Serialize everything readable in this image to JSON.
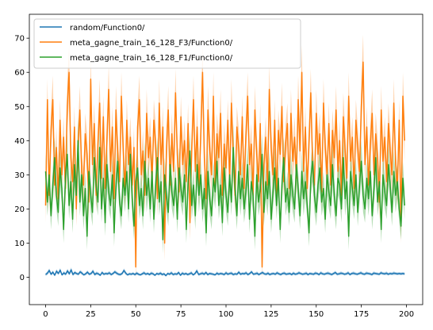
{
  "chart_data": {
    "type": "line",
    "title": "",
    "xlabel": "",
    "ylabel": "",
    "xlim": [
      -9,
      209
    ],
    "ylim": [
      -8,
      77
    ],
    "x_ticks": [
      0,
      25,
      50,
      75,
      100,
      125,
      150,
      175,
      200
    ],
    "y_ticks": [
      0,
      10,
      20,
      30,
      40,
      50,
      60,
      70
    ],
    "legend_position": "top-left",
    "grid": false,
    "series": [
      {
        "name": "random/Function0/",
        "color": "#1f77b4",
        "x_start": 0,
        "x_end": 199,
        "values": [
          0.8,
          1.2,
          2.0,
          0.9,
          1.5,
          0.6,
          1.8,
          1.1,
          2.1,
          0.7,
          1.3,
          0.9,
          1.9,
          1.0,
          2.2,
          0.8,
          1.4,
          1.1,
          0.9,
          1.6,
          1.2,
          0.7,
          1.0,
          1.5,
          0.9,
          1.1,
          1.8,
          0.8,
          1.2,
          1.0,
          0.6,
          1.4,
          0.9,
          1.1,
          1.0,
          1.3,
          0.8,
          1.1,
          1.6,
          1.2,
          0.9,
          0.8,
          1.1,
          2.0,
          1.2,
          0.7,
          1.0,
          0.9,
          1.1,
          0.8,
          1.2,
          0.9,
          0.7,
          1.0,
          1.3,
          0.9,
          1.1,
          0.8,
          1.2,
          1.0,
          0.6,
          1.1,
          0.9,
          1.2,
          0.8,
          1.0,
          0.5,
          1.1,
          0.9,
          1.3,
          0.8,
          1.0,
          0.9,
          1.4,
          0.6,
          1.2,
          0.9,
          1.1,
          0.8,
          1.0,
          1.3,
          0.7,
          1.1,
          1.9,
          0.8,
          1.0,
          1.2,
          0.9,
          1.4,
          0.8,
          1.1,
          1.0,
          0.9,
          0.7,
          1.2,
          0.9,
          1.1,
          1.0,
          0.8,
          1.3,
          0.9,
          1.1,
          1.2,
          0.8,
          1.0,
          0.9,
          1.5,
          0.9,
          1.1,
          1.0,
          1.3,
          0.8,
          1.1,
          1.6,
          0.9,
          1.0,
          1.2,
          0.8,
          1.1,
          1.4,
          1.0,
          0.9,
          1.2,
          0.8,
          1.0,
          1.1,
          0.9,
          1.3,
          1.0,
          0.8,
          1.1,
          1.2,
          0.9,
          1.0,
          1.1,
          0.8,
          1.2,
          0.9,
          1.0,
          1.3,
          1.1,
          0.9,
          1.0,
          1.2,
          0.8,
          1.1,
          1.0,
          0.9,
          1.2,
          1.1,
          0.8,
          1.3,
          1.0,
          0.9,
          1.1,
          1.2,
          1.0,
          0.8,
          1.1,
          1.4,
          0.9,
          1.0,
          1.2,
          1.1,
          0.9,
          1.0,
          1.3,
          0.8,
          1.1,
          1.2,
          1.0,
          0.9,
          1.1,
          1.3,
          1.0,
          0.9,
          1.2,
          1.1,
          1.0,
          0.8,
          1.2,
          1.1,
          1.0,
          0.9,
          1.3,
          1.1,
          1.0,
          1.2,
          0.9,
          1.1,
          1.0,
          1.2,
          1.1,
          1.0,
          1.1,
          1.0,
          1.1,
          1.0
        ],
        "band": [
          0.4,
          0.5,
          0.6,
          0.4,
          0.5,
          0.3,
          0.6,
          0.4,
          0.6,
          0.3,
          0.5,
          0.4,
          0.6,
          0.4,
          0.7,
          0.4,
          0.5,
          0.4,
          0.4,
          0.5,
          0.5,
          0.3,
          0.4,
          0.5,
          0.4,
          0.4,
          0.6,
          0.4,
          0.5,
          0.4,
          0.3,
          0.5,
          0.4,
          0.4,
          0.4,
          0.5,
          0.4,
          0.4,
          0.5,
          0.5,
          0.4,
          0.4,
          0.4,
          0.6,
          0.5,
          0.3,
          0.4,
          0.4,
          0.4,
          0.4,
          0.5,
          0.4,
          0.3,
          0.4,
          0.5,
          0.4,
          0.4,
          0.4,
          0.5,
          0.4,
          0.3,
          0.4,
          0.4,
          0.5,
          0.4,
          0.4,
          0.3,
          0.4,
          0.4,
          0.5,
          0.4,
          0.4,
          0.4,
          0.5,
          0.3,
          0.5,
          0.4,
          0.4,
          0.4,
          0.4,
          0.5,
          0.3,
          0.4,
          0.6,
          0.4,
          0.4,
          0.5,
          0.4,
          0.5,
          0.4,
          0.4,
          0.4,
          0.4,
          0.3,
          0.5,
          0.4,
          0.4,
          0.4,
          0.4,
          0.5,
          0.4,
          0.4,
          0.5,
          0.4,
          0.4,
          0.4,
          0.5,
          0.4,
          0.4,
          0.4,
          0.5,
          0.4,
          0.4,
          0.5,
          0.4,
          0.4,
          0.5,
          0.4,
          0.4,
          0.5,
          0.4,
          0.4,
          0.5,
          0.4,
          0.4,
          0.4,
          0.4,
          0.5,
          0.4,
          0.4,
          0.4,
          0.5,
          0.4,
          0.4,
          0.4,
          0.4,
          0.5,
          0.4,
          0.4,
          0.5,
          0.4,
          0.4,
          0.4,
          0.5,
          0.4,
          0.4,
          0.4,
          0.4,
          0.5,
          0.4,
          0.4,
          0.5,
          0.4,
          0.4,
          0.4,
          0.5,
          0.4,
          0.4,
          0.4,
          0.5,
          0.4,
          0.4,
          0.5,
          0.4,
          0.4,
          0.4,
          0.5,
          0.4,
          0.4,
          0.5,
          0.4,
          0.4,
          0.4,
          0.5,
          0.4,
          0.4,
          0.5,
          0.4,
          0.4,
          0.4,
          0.5,
          0.4,
          0.4,
          0.4,
          0.5,
          0.4,
          0.4,
          0.5,
          0.4,
          0.4,
          0.4,
          0.5,
          0.4,
          0.4,
          0.4,
          0.4,
          0.4,
          0.4
        ]
      },
      {
        "name": "meta_gagne_train_16_128_F3/Function0/",
        "color": "#ff7f0e",
        "x_start": 0,
        "x_end": 199,
        "values": [
          21,
          52,
          24,
          43,
          52,
          27,
          38,
          23,
          46,
          30,
          41,
          26,
          50,
          60,
          35,
          28,
          44,
          20,
          38,
          49,
          31,
          27,
          42,
          36,
          22,
          58,
          33,
          45,
          24,
          39,
          51,
          29,
          47,
          26,
          40,
          55,
          31,
          44,
          23,
          49,
          36,
          28,
          53,
          38,
          25,
          46,
          33,
          41,
          27,
          38,
          3,
          44,
          52,
          30,
          37,
          24,
          48,
          35,
          41,
          28,
          46,
          39,
          23,
          51,
          33,
          44,
          10,
          38,
          49,
          27,
          42,
          31,
          54,
          36,
          25,
          47,
          33,
          40,
          28,
          45,
          16,
          38,
          52,
          31,
          44,
          26,
          41,
          60,
          35,
          23,
          49,
          37,
          30,
          53,
          27,
          42,
          35,
          48,
          24,
          39,
          32,
          46,
          28,
          51,
          36,
          24,
          44,
          38,
          30,
          47,
          26,
          41,
          53,
          33,
          39,
          24,
          49,
          36,
          28,
          45,
          3,
          33,
          41,
          27,
          55,
          38,
          30,
          46,
          24,
          43,
          36,
          50,
          28,
          39,
          45,
          26,
          48,
          34,
          41,
          29,
          52,
          37,
          60,
          31,
          44,
          26,
          40,
          54,
          33,
          27,
          48,
          36,
          42,
          25,
          51,
          38,
          30,
          45,
          27,
          43,
          35,
          49,
          31,
          40,
          24,
          47,
          37,
          29,
          53,
          34,
          41,
          26,
          46,
          38,
          31,
          50,
          63,
          33,
          44,
          27,
          39,
          48,
          30,
          42,
          35,
          22,
          49,
          34,
          41,
          28,
          45,
          37,
          30,
          51,
          33,
          26,
          46,
          15,
          53,
          40
        ],
        "band": [
          5,
          6,
          5,
          6,
          7,
          5,
          6,
          5,
          6,
          5,
          6,
          5,
          7,
          8,
          6,
          5,
          6,
          5,
          6,
          7,
          5,
          5,
          6,
          6,
          5,
          7,
          5,
          6,
          5,
          6,
          7,
          5,
          6,
          5,
          6,
          7,
          5,
          6,
          5,
          7,
          6,
          5,
          7,
          6,
          5,
          6,
          5,
          6,
          5,
          6,
          4,
          6,
          7,
          5,
          6,
          5,
          7,
          6,
          6,
          5,
          6,
          6,
          5,
          7,
          5,
          6,
          5,
          6,
          7,
          5,
          6,
          5,
          7,
          6,
          5,
          6,
          5,
          6,
          5,
          6,
          5,
          6,
          7,
          5,
          6,
          5,
          6,
          8,
          6,
          5,
          7,
          6,
          5,
          7,
          5,
          6,
          6,
          7,
          5,
          6,
          5,
          6,
          5,
          7,
          6,
          5,
          6,
          6,
          5,
          6,
          5,
          6,
          7,
          5,
          6,
          5,
          7,
          6,
          5,
          6,
          4,
          5,
          6,
          5,
          7,
          6,
          5,
          6,
          5,
          6,
          6,
          7,
          5,
          6,
          6,
          5,
          7,
          5,
          6,
          5,
          7,
          6,
          8,
          5,
          6,
          5,
          6,
          7,
          5,
          5,
          7,
          6,
          6,
          5,
          7,
          6,
          5,
          6,
          5,
          6,
          6,
          7,
          5,
          6,
          5,
          7,
          6,
          5,
          7,
          5,
          6,
          5,
          6,
          6,
          5,
          7,
          8,
          5,
          6,
          5,
          6,
          7,
          5,
          6,
          6,
          5,
          7,
          5,
          6,
          5,
          6,
          6,
          5,
          7,
          5,
          5,
          6,
          5,
          7,
          6
        ]
      },
      {
        "name": "meta_gagne_train_16_128_F1/Function0/",
        "color": "#2ca02c",
        "x_start": 0,
        "x_end": 199,
        "values": [
          31,
          22,
          30,
          18,
          27,
          35,
          24,
          19,
          32,
          26,
          14,
          29,
          36,
          21,
          28,
          17,
          33,
          24,
          40,
          22,
          30,
          18,
          26,
          12,
          31,
          24,
          19,
          35,
          27,
          22,
          38,
          20,
          29,
          16,
          33,
          25,
          21,
          30,
          13,
          27,
          34,
          22,
          18,
          29,
          24,
          31,
          20,
          36,
          23,
          15,
          28,
          32,
          21,
          26,
          18,
          34,
          24,
          29,
          20,
          31,
          17,
          27,
          35,
          22,
          28,
          11,
          30,
          24,
          19,
          33,
          25,
          21,
          29,
          17,
          32,
          26,
          22,
          30,
          14,
          28,
          37,
          21,
          27,
          18,
          33,
          24,
          30,
          20,
          26,
          13,
          31,
          23,
          18,
          29,
          25,
          34,
          21,
          27,
          16,
          32,
          24,
          19,
          30,
          22,
          38,
          26,
          18,
          31,
          23,
          29,
          20,
          25,
          33,
          17,
          28,
          24,
          12,
          30,
          22,
          26,
          36,
          19,
          28,
          23,
          31,
          17,
          25,
          32,
          21,
          29,
          14,
          27,
          35,
          22,
          26,
          19,
          30,
          24,
          20,
          33,
          26,
          18,
          31,
          23,
          28,
          21,
          13,
          29,
          34,
          24,
          19,
          27,
          32,
          22,
          26,
          17,
          30,
          25,
          21,
          33,
          24,
          18,
          29,
          27,
          20,
          35,
          23,
          28,
          12,
          31,
          26,
          21,
          30,
          19,
          27,
          34,
          24,
          20,
          29,
          23,
          31,
          18,
          26,
          35,
          22,
          28,
          14,
          30,
          25,
          21,
          33,
          27,
          19,
          31,
          24,
          28,
          20,
          15,
          29,
          21
        ],
        "band": [
          5,
          4,
          5,
          4,
          5,
          6,
          4,
          4,
          5,
          5,
          4,
          5,
          6,
          4,
          5,
          4,
          6,
          5,
          7,
          4,
          5,
          4,
          5,
          4,
          5,
          5,
          4,
          6,
          5,
          4,
          6,
          4,
          5,
          4,
          6,
          5,
          4,
          5,
          4,
          5,
          6,
          4,
          4,
          5,
          5,
          5,
          4,
          6,
          5,
          4,
          5,
          6,
          4,
          5,
          4,
          6,
          5,
          5,
          4,
          6,
          4,
          5,
          6,
          4,
          5,
          4,
          5,
          5,
          4,
          6,
          5,
          4,
          5,
          4,
          6,
          5,
          4,
          5,
          4,
          5,
          6,
          4,
          5,
          4,
          6,
          5,
          5,
          4,
          5,
          4,
          6,
          5,
          4,
          5,
          5,
          6,
          4,
          5,
          4,
          6,
          5,
          4,
          5,
          4,
          7,
          5,
          4,
          6,
          5,
          5,
          4,
          5,
          6,
          4,
          5,
          5,
          4,
          5,
          4,
          5,
          6,
          4,
          5,
          5,
          6,
          4,
          5,
          6,
          4,
          5,
          4,
          5,
          6,
          4,
          5,
          4,
          6,
          5,
          4,
          6,
          5,
          4,
          6,
          5,
          5,
          4,
          4,
          5,
          6,
          5,
          4,
          5,
          6,
          4,
          5,
          4,
          6,
          5,
          4,
          6,
          5,
          4,
          5,
          5,
          4,
          6,
          5,
          5,
          4,
          6,
          5,
          4,
          5,
          4,
          5,
          6,
          5,
          4,
          5,
          5,
          6,
          4,
          5,
          6,
          4,
          5,
          4,
          6,
          5,
          4,
          6,
          5,
          4,
          6,
          5,
          5,
          4,
          4,
          5,
          4
        ]
      }
    ]
  }
}
